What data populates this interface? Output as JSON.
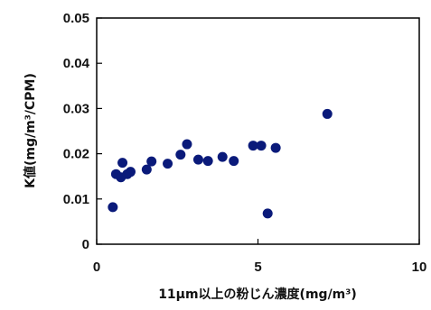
{
  "chart_data": {
    "type": "scatter",
    "title": "",
    "xlabel": "11μm以上の粉じん濃度(mg/m³)",
    "ylabel": "K値(mg/m³/CPM)",
    "xlim": [
      0,
      10
    ],
    "ylim": [
      0,
      0.05
    ],
    "x_ticks": [
      "0",
      "5",
      "10"
    ],
    "y_ticks": [
      "0",
      "0.01",
      "0.02",
      "0.03",
      "0.04",
      "0.05"
    ],
    "grid": false,
    "marker_color": "#0a1a7a",
    "points": [
      {
        "x": 0.5,
        "y": 0.0082
      },
      {
        "x": 0.6,
        "y": 0.0155
      },
      {
        "x": 0.75,
        "y": 0.0148
      },
      {
        "x": 0.8,
        "y": 0.018
      },
      {
        "x": 0.95,
        "y": 0.0155
      },
      {
        "x": 1.05,
        "y": 0.016
      },
      {
        "x": 1.55,
        "y": 0.0165
      },
      {
        "x": 1.7,
        "y": 0.0183
      },
      {
        "x": 2.2,
        "y": 0.0178
      },
      {
        "x": 2.6,
        "y": 0.0198
      },
      {
        "x": 2.8,
        "y": 0.0221
      },
      {
        "x": 3.15,
        "y": 0.0187
      },
      {
        "x": 3.45,
        "y": 0.0184
      },
      {
        "x": 3.9,
        "y": 0.0193
      },
      {
        "x": 4.25,
        "y": 0.0184
      },
      {
        "x": 4.85,
        "y": 0.0218
      },
      {
        "x": 5.1,
        "y": 0.0218
      },
      {
        "x": 5.3,
        "y": 0.0068
      },
      {
        "x": 5.55,
        "y": 0.0213
      },
      {
        "x": 7.15,
        "y": 0.0288
      }
    ]
  }
}
